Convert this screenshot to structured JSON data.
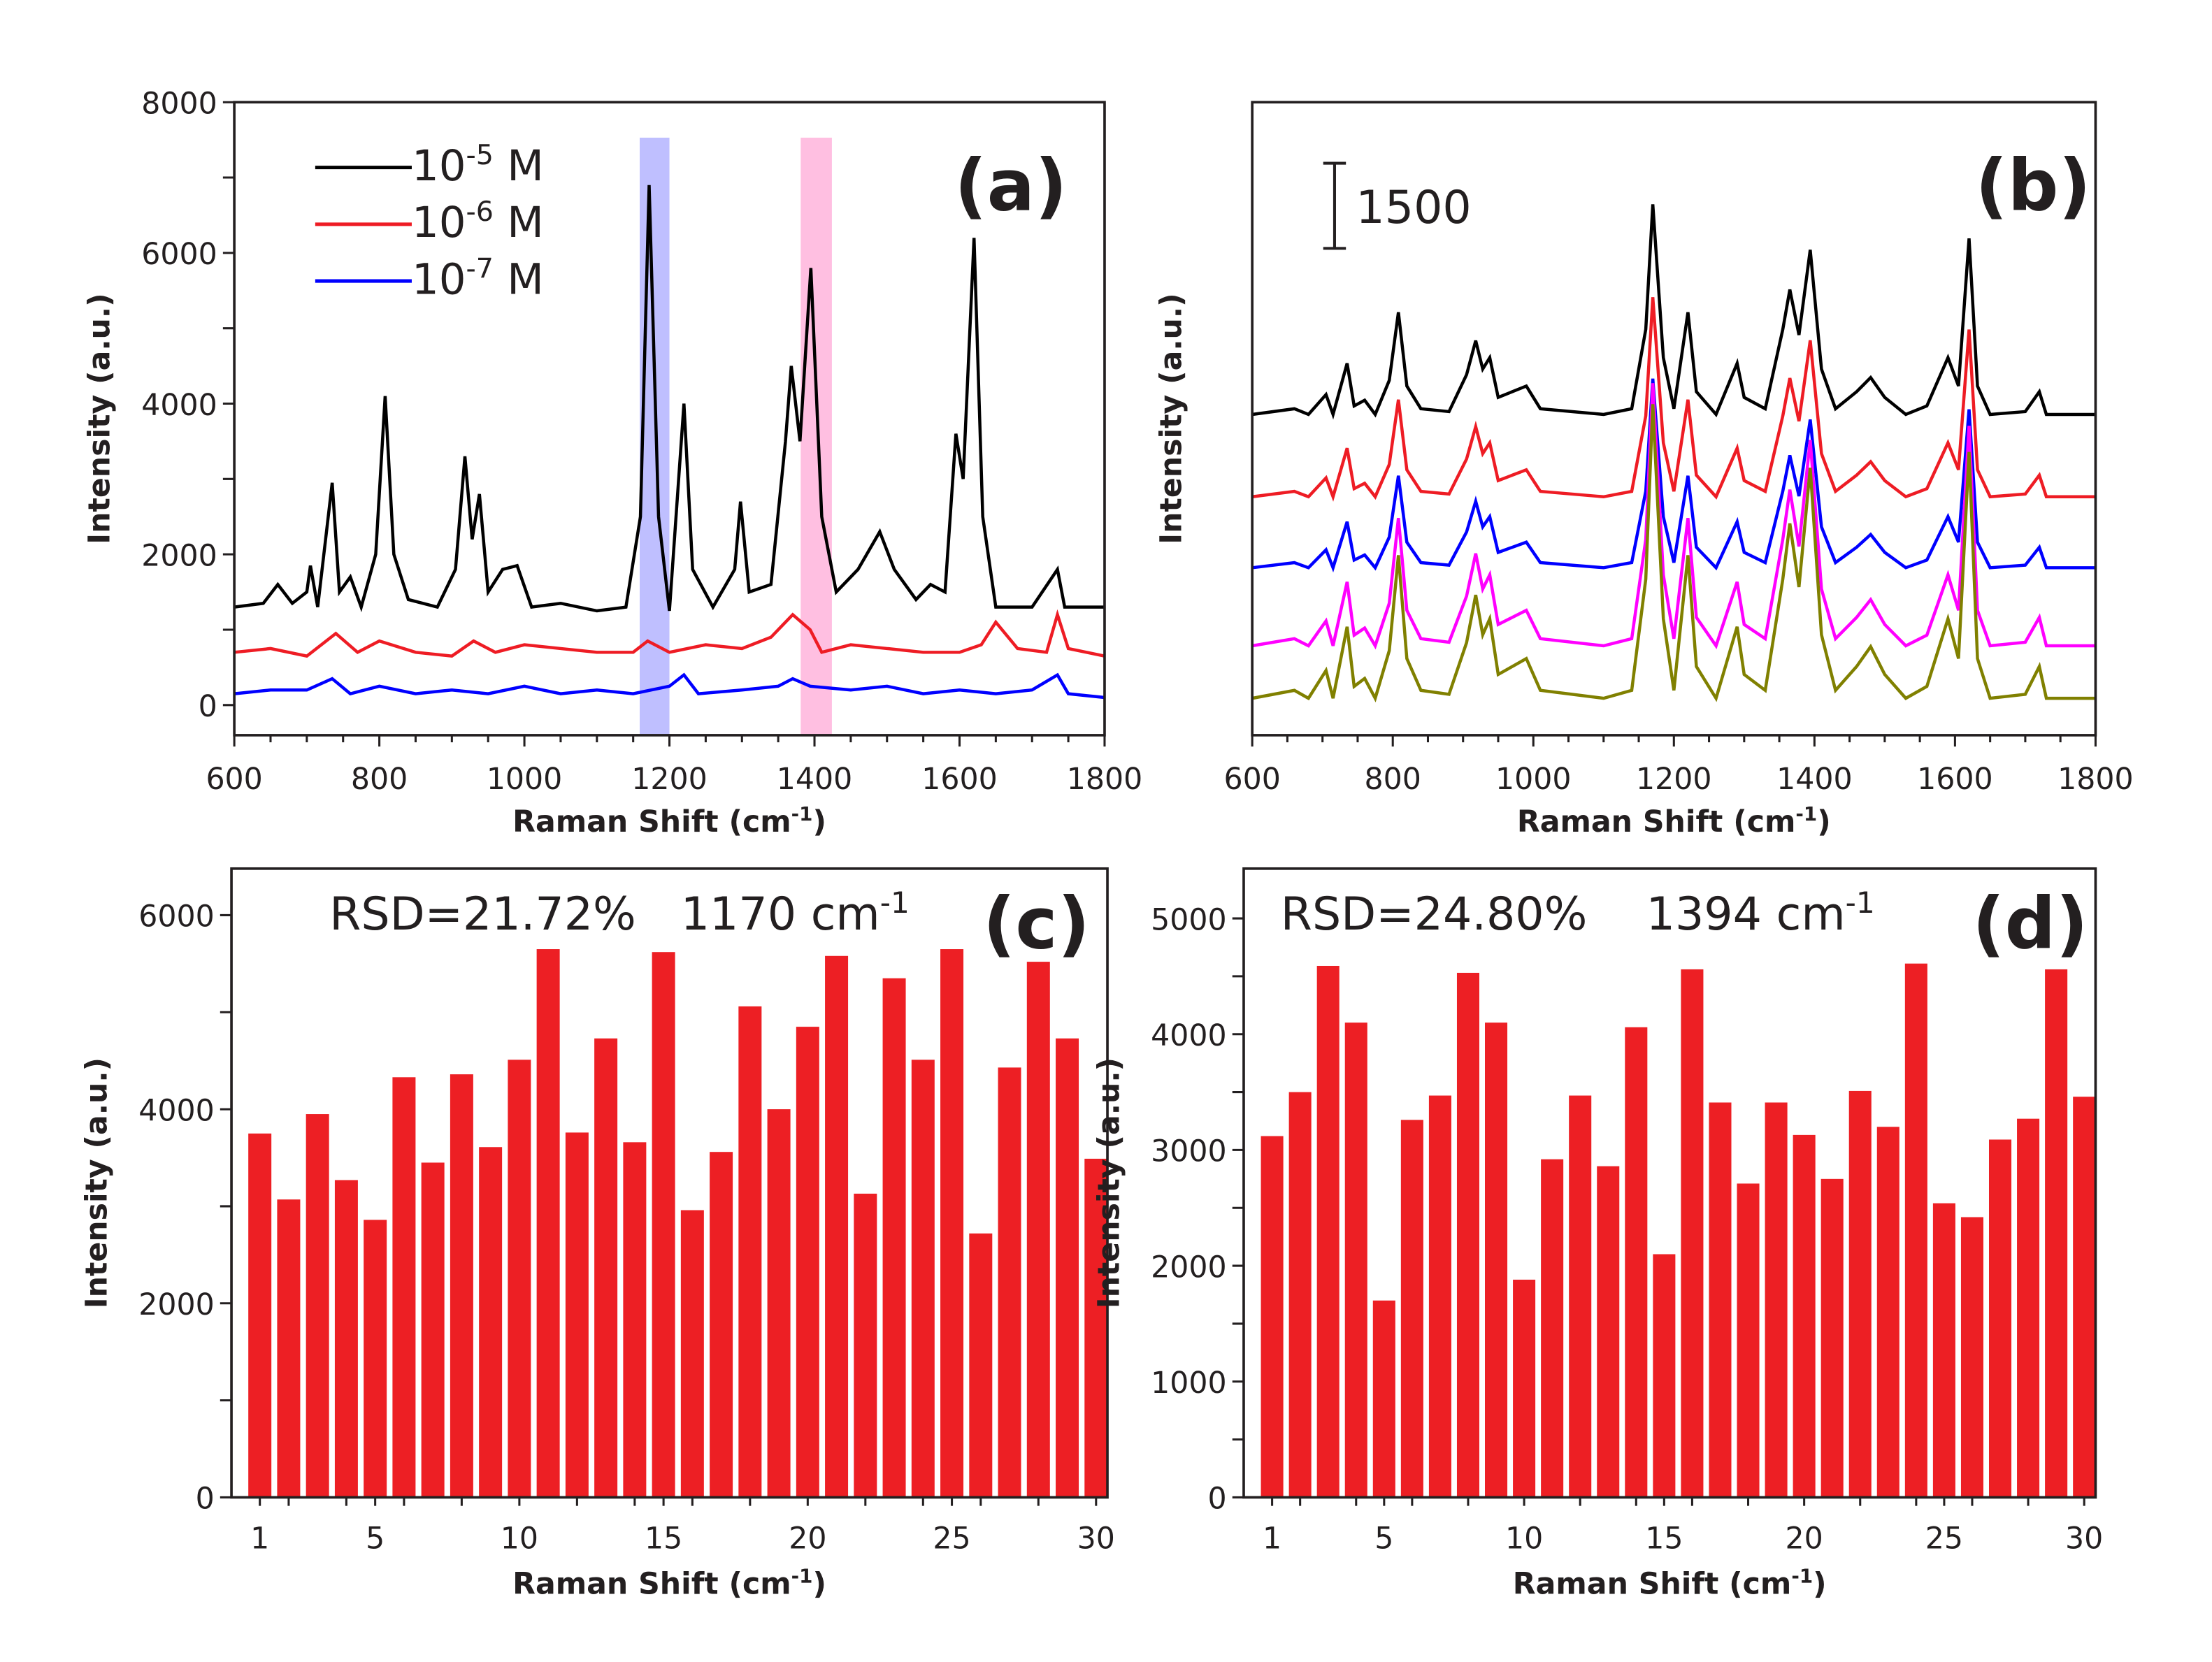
{
  "chart_data": [
    {
      "panel": "(a)",
      "type": "line",
      "xlabel": "Raman Shift (cm",
      "xlabel_sup": "-1",
      "xlabel_end": ")",
      "ylabel": "Intensity (a.u.)",
      "xlim": [
        600,
        1800
      ],
      "ylim": [
        -400,
        8000
      ],
      "xticks": [
        600,
        800,
        1000,
        1200,
        1400,
        1600,
        1800
      ],
      "yticks": [
        0,
        2000,
        4000,
        6000,
        8000
      ],
      "highlights": [
        {
          "range": [
            1159,
            1200
          ],
          "color": "#b4b4ff"
        },
        {
          "range": [
            1381,
            1424
          ],
          "color": "#ffb4dc"
        }
      ],
      "series": [
        {
          "name": "10",
          "sup": "-5",
          "unit": " M",
          "color": "#000000",
          "points": [
            [
              600,
              1300
            ],
            [
              640,
              1350
            ],
            [
              660,
              1600
            ],
            [
              680,
              1350
            ],
            [
              700,
              1500
            ],
            [
              705,
              1850
            ],
            [
              715,
              1300
            ],
            [
              735,
              2950
            ],
            [
              745,
              1500
            ],
            [
              760,
              1700
            ],
            [
              775,
              1300
            ],
            [
              795,
              2000
            ],
            [
              808,
              4100
            ],
            [
              820,
              2000
            ],
            [
              840,
              1400
            ],
            [
              880,
              1300
            ],
            [
              905,
              1800
            ],
            [
              918,
              3300
            ],
            [
              928,
              2200
            ],
            [
              938,
              2800
            ],
            [
              950,
              1500
            ],
            [
              970,
              1800
            ],
            [
              990,
              1850
            ],
            [
              1010,
              1300
            ],
            [
              1050,
              1350
            ],
            [
              1100,
              1250
            ],
            [
              1140,
              1300
            ],
            [
              1160,
              2500
            ],
            [
              1172,
              6900
            ],
            [
              1185,
              2500
            ],
            [
              1200,
              1250
            ],
            [
              1220,
              4000
            ],
            [
              1232,
              1800
            ],
            [
              1260,
              1300
            ],
            [
              1290,
              1800
            ],
            [
              1298,
              2700
            ],
            [
              1310,
              1500
            ],
            [
              1340,
              1600
            ],
            [
              1360,
              3500
            ],
            [
              1368,
              4500
            ],
            [
              1380,
              3500
            ],
            [
              1395,
              5800
            ],
            [
              1410,
              2500
            ],
            [
              1430,
              1500
            ],
            [
              1460,
              1800
            ],
            [
              1490,
              2300
            ],
            [
              1510,
              1800
            ],
            [
              1540,
              1400
            ],
            [
              1560,
              1600
            ],
            [
              1580,
              1500
            ],
            [
              1595,
              3600
            ],
            [
              1605,
              3000
            ],
            [
              1620,
              6200
            ],
            [
              1632,
              2500
            ],
            [
              1650,
              1300
            ],
            [
              1700,
              1300
            ],
            [
              1735,
              1800
            ],
            [
              1745,
              1300
            ],
            [
              1800,
              1300
            ]
          ]
        },
        {
          "name": "10",
          "sup": "-6",
          "unit": " M",
          "color": "#ee1c24",
          "points": [
            [
              600,
              700
            ],
            [
              650,
              750
            ],
            [
              700,
              650
            ],
            [
              740,
              950
            ],
            [
              770,
              700
            ],
            [
              800,
              850
            ],
            [
              850,
              700
            ],
            [
              900,
              650
            ],
            [
              930,
              850
            ],
            [
              960,
              700
            ],
            [
              1000,
              800
            ],
            [
              1050,
              750
            ],
            [
              1100,
              700
            ],
            [
              1150,
              700
            ],
            [
              1170,
              850
            ],
            [
              1200,
              700
            ],
            [
              1250,
              800
            ],
            [
              1300,
              750
            ],
            [
              1340,
              900
            ],
            [
              1370,
              1200
            ],
            [
              1394,
              1000
            ],
            [
              1410,
              700
            ],
            [
              1450,
              800
            ],
            [
              1500,
              750
            ],
            [
              1550,
              700
            ],
            [
              1600,
              700
            ],
            [
              1630,
              800
            ],
            [
              1650,
              1100
            ],
            [
              1680,
              750
            ],
            [
              1720,
              700
            ],
            [
              1735,
              1200
            ],
            [
              1750,
              750
            ],
            [
              1800,
              650
            ]
          ]
        },
        {
          "name": "10",
          "sup": "-7",
          "unit": " M",
          "color": "#0000ff",
          "points": [
            [
              600,
              150
            ],
            [
              650,
              200
            ],
            [
              700,
              200
            ],
            [
              735,
              350
            ],
            [
              760,
              150
            ],
            [
              800,
              250
            ],
            [
              850,
              150
            ],
            [
              900,
              200
            ],
            [
              950,
              150
            ],
            [
              1000,
              250
            ],
            [
              1050,
              150
            ],
            [
              1100,
              200
            ],
            [
              1150,
              150
            ],
            [
              1200,
              250
            ],
            [
              1220,
              400
            ],
            [
              1240,
              150
            ],
            [
              1300,
              200
            ],
            [
              1350,
              250
            ],
            [
              1370,
              350
            ],
            [
              1394,
              250
            ],
            [
              1450,
              200
            ],
            [
              1500,
              250
            ],
            [
              1550,
              150
            ],
            [
              1600,
              200
            ],
            [
              1650,
              150
            ],
            [
              1700,
              200
            ],
            [
              1735,
              400
            ],
            [
              1750,
              150
            ],
            [
              1800,
              100
            ]
          ]
        }
      ]
    },
    {
      "panel": "(b)",
      "type": "line",
      "xlabel": "Raman Shift (cm",
      "xlabel_sup": "-1",
      "xlabel_end": ")",
      "ylabel": "Intensity (a.u.)",
      "xlim": [
        600,
        1800
      ],
      "ylim": [
        0,
        11150
      ],
      "xticks": [
        600,
        800,
        1000,
        1200,
        1400,
        1600,
        1800
      ],
      "scale_bar": {
        "value": 1500,
        "label": "1500"
      },
      "profile": [
        [
          600,
          0
        ],
        [
          660,
          100
        ],
        [
          680,
          0
        ],
        [
          705,
          350
        ],
        [
          715,
          0
        ],
        [
          735,
          900
        ],
        [
          745,
          150
        ],
        [
          760,
          250
        ],
        [
          775,
          0
        ],
        [
          795,
          600
        ],
        [
          808,
          1800
        ],
        [
          820,
          500
        ],
        [
          840,
          100
        ],
        [
          880,
          50
        ],
        [
          905,
          700
        ],
        [
          918,
          1300
        ],
        [
          928,
          800
        ],
        [
          938,
          1000
        ],
        [
          950,
          300
        ],
        [
          970,
          400
        ],
        [
          990,
          500
        ],
        [
          1010,
          100
        ],
        [
          1100,
          0
        ],
        [
          1140,
          100
        ],
        [
          1160,
          1500
        ],
        [
          1170,
          3700
        ],
        [
          1185,
          1000
        ],
        [
          1200,
          100
        ],
        [
          1220,
          1800
        ],
        [
          1232,
          400
        ],
        [
          1260,
          0
        ],
        [
          1290,
          900
        ],
        [
          1300,
          300
        ],
        [
          1330,
          100
        ],
        [
          1355,
          1500
        ],
        [
          1365,
          2200
        ],
        [
          1378,
          1400
        ],
        [
          1394,
          2900
        ],
        [
          1410,
          800
        ],
        [
          1430,
          100
        ],
        [
          1460,
          400
        ],
        [
          1480,
          650
        ],
        [
          1500,
          300
        ],
        [
          1530,
          0
        ],
        [
          1560,
          150
        ],
        [
          1590,
          1000
        ],
        [
          1605,
          500
        ],
        [
          1620,
          3100
        ],
        [
          1632,
          500
        ],
        [
          1650,
          0
        ],
        [
          1700,
          50
        ],
        [
          1720,
          400
        ],
        [
          1730,
          0
        ],
        [
          1800,
          0
        ]
      ],
      "series": [
        {
          "color": "#000000",
          "baseline": 5650,
          "scale": 1.0
        },
        {
          "color": "#ee1c24",
          "baseline": 4200,
          "scale": 0.95
        },
        {
          "color": "#0000ff",
          "baseline": 2950,
          "scale": 0.9
        },
        {
          "color": "#ff00ff",
          "baseline": 1575,
          "scale": 1.25
        },
        {
          "color": "#808000",
          "baseline": 650,
          "scale": 1.4
        }
      ]
    },
    {
      "panel": "(c)",
      "type": "bar",
      "annotation": "RSD=21.72%",
      "peak": "1170 cm",
      "peak_sup": "-1",
      "xlabel": "Raman Shift (cm",
      "xlabel_sup": "-1",
      "xlabel_end": ")",
      "ylabel": "Intensity (a.u.)",
      "ylim": [
        0,
        6480
      ],
      "yticks": [
        0,
        2000,
        4000,
        6000
      ],
      "xticks": [
        1,
        5,
        10,
        15,
        20,
        25,
        30
      ],
      "color": "#ed1f24",
      "values": [
        3750,
        3070,
        3950,
        3270,
        2860,
        4330,
        3450,
        4360,
        3610,
        4510,
        5650,
        3760,
        4730,
        3660,
        5620,
        2960,
        3560,
        5060,
        4000,
        4850,
        5580,
        3130,
        5350,
        4510,
        5650,
        2720,
        4430,
        5520,
        4730,
        3490
      ]
    },
    {
      "panel": "(d)",
      "type": "bar",
      "annotation": "RSD=24.80%",
      "peak": "1394 cm",
      "peak_sup": "-1",
      "xlabel": "Raman Shift (cm",
      "xlabel_sup": "-1",
      "xlabel_end": ")",
      "ylabel": "Intensity (a.u.)",
      "ylim": [
        0,
        5430
      ],
      "yticks": [
        0,
        1000,
        2000,
        3000,
        4000,
        5000
      ],
      "xticks": [
        1,
        5,
        10,
        15,
        20,
        25,
        30
      ],
      "color": "#ed1f24",
      "values": [
        3120,
        3500,
        4590,
        4100,
        1700,
        3260,
        3470,
        4530,
        4100,
        1880,
        2920,
        3470,
        2860,
        4060,
        2100,
        4560,
        3410,
        2710,
        3410,
        3130,
        2750,
        3510,
        3200,
        4610,
        2540,
        2420,
        3090,
        3270,
        4560,
        3460
      ]
    }
  ]
}
